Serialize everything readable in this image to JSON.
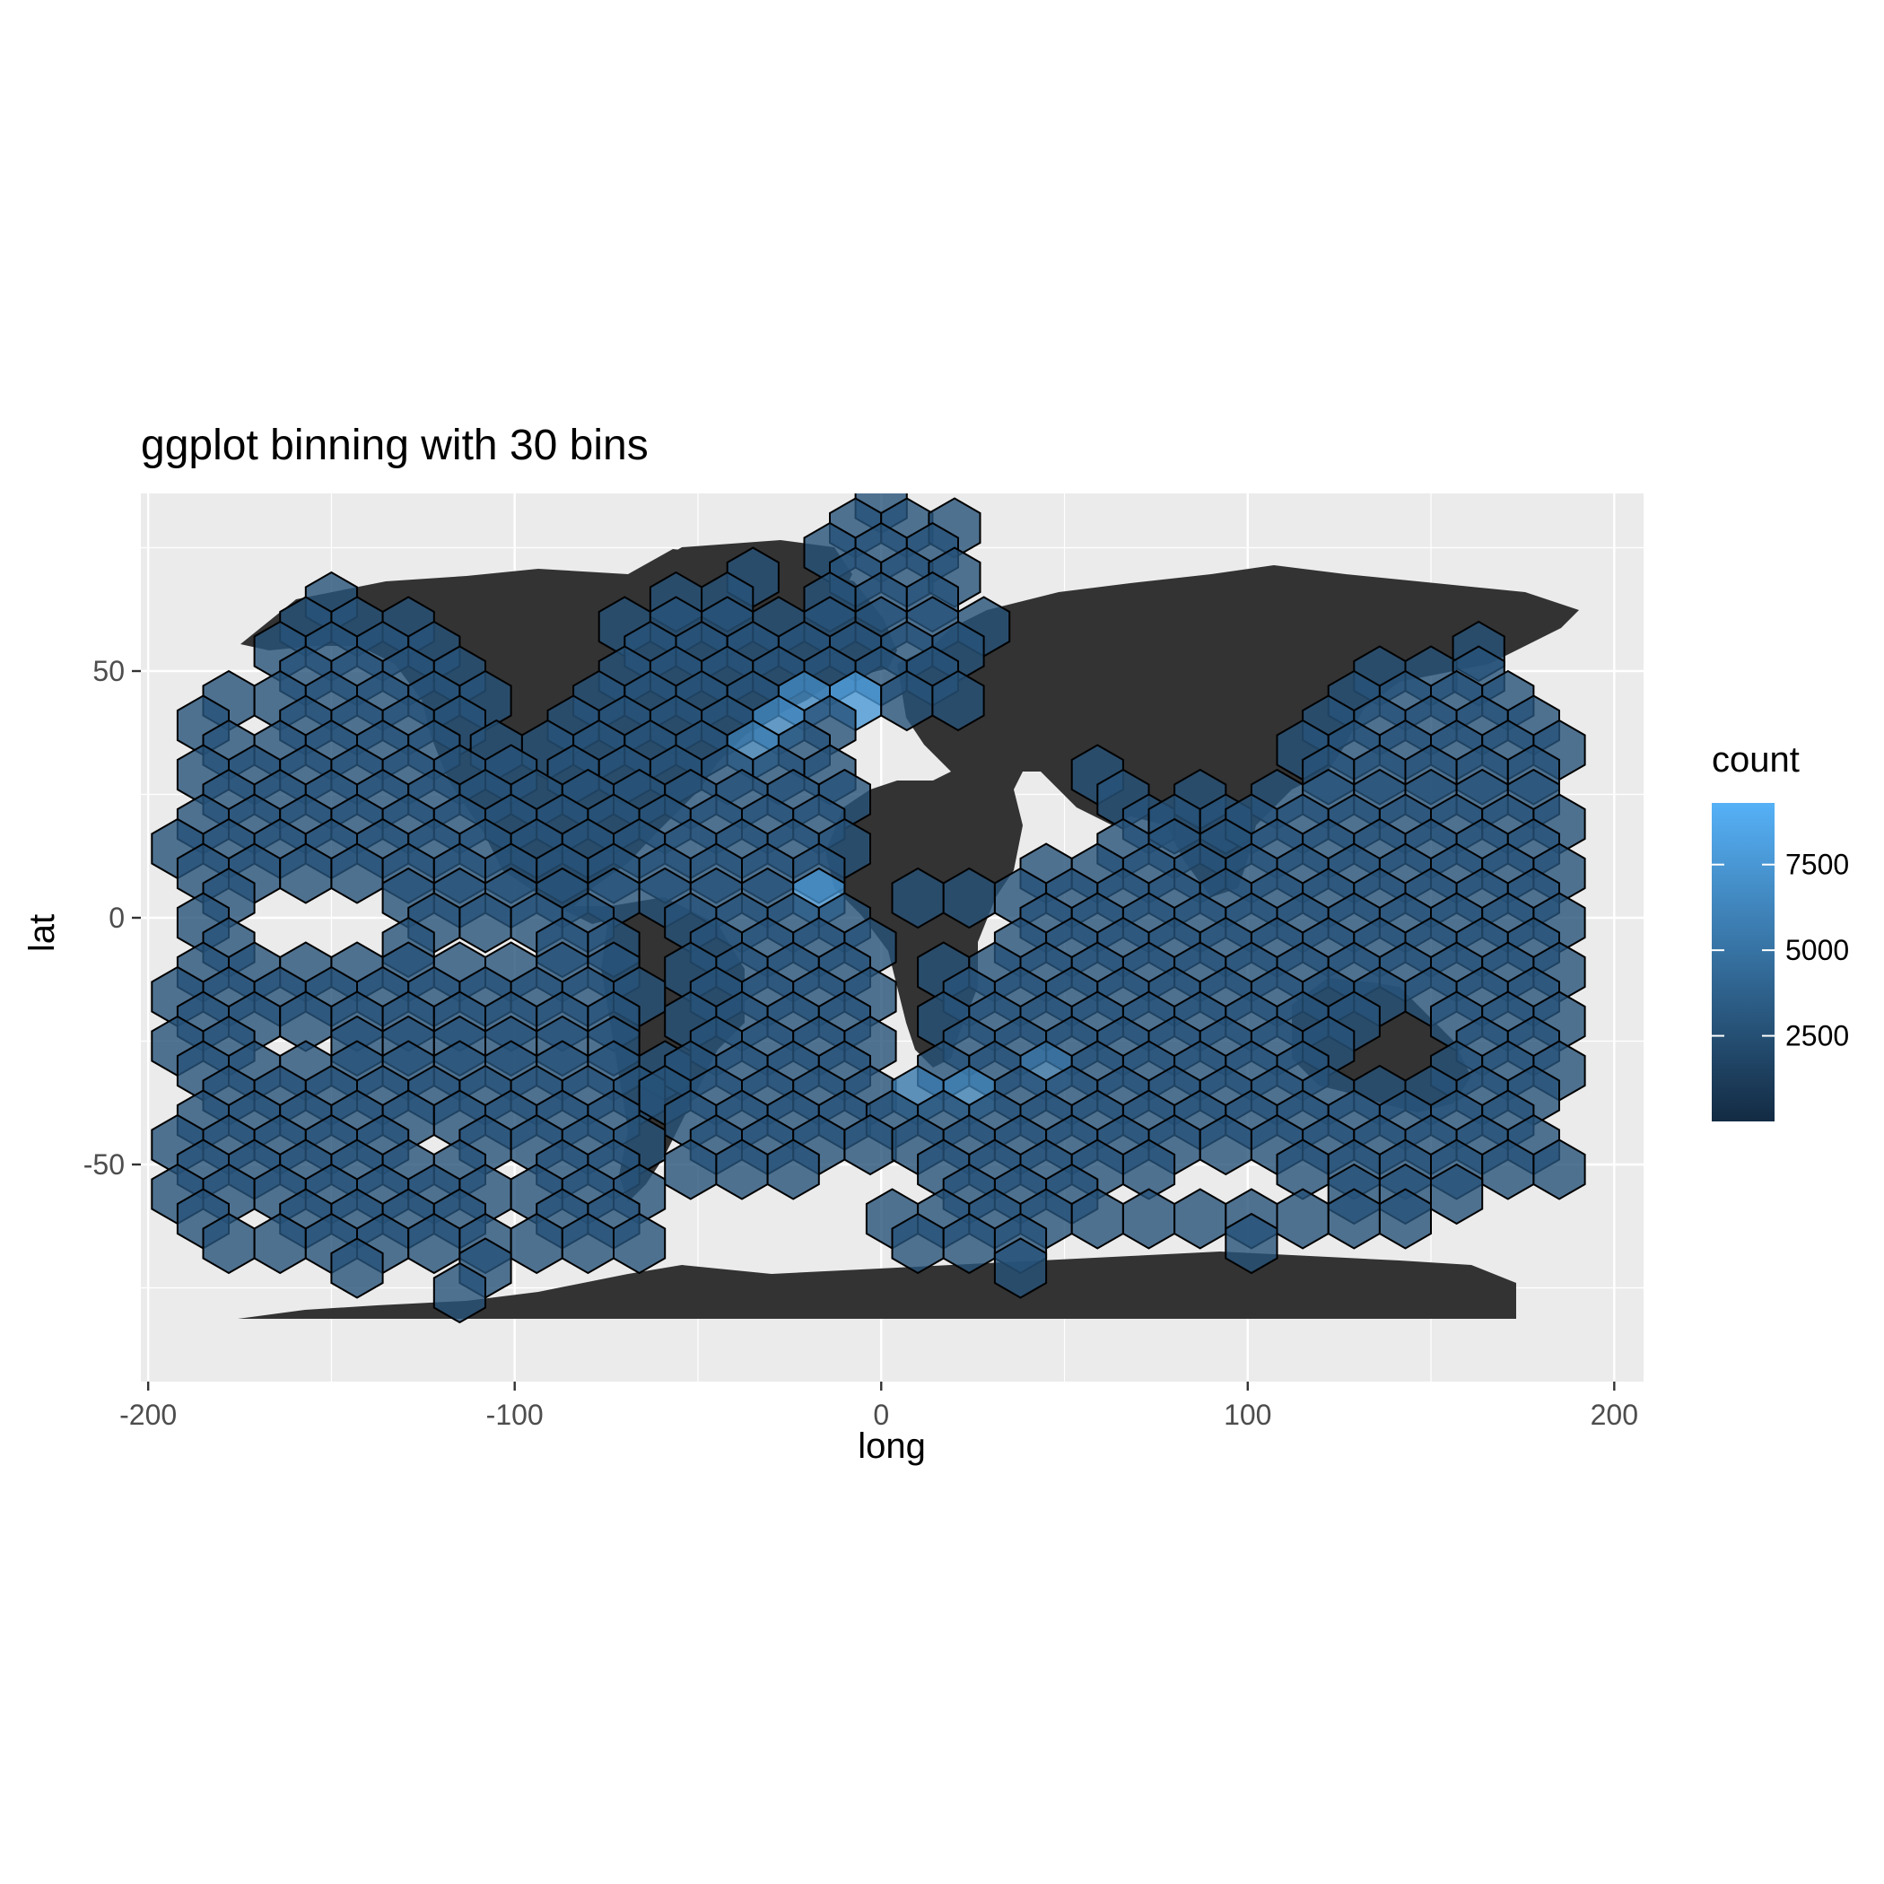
{
  "chart_data": {
    "type": "hexbin",
    "title": "ggplot binning with 30 bins",
    "xlabel": "long",
    "ylabel": "lat",
    "xlim": [
      -202,
      208
    ],
    "ylim": [
      -94,
      86
    ],
    "x_ticks": [
      -200,
      -100,
      0,
      100,
      200
    ],
    "x_tick_labels": [
      "-200",
      "-100",
      "0",
      "100",
      "200"
    ],
    "y_ticks": [
      -50,
      0,
      50
    ],
    "y_tick_labels": [
      "-50",
      "0",
      "50"
    ],
    "grid": true,
    "background_layer": "world land polygons (dark fill #333333)",
    "legend": {
      "title": "count",
      "position": "right",
      "breaks": [
        2500,
        5000,
        7500
      ],
      "break_labels": [
        "2500",
        "5000",
        "7500"
      ],
      "range": [
        0,
        9300
      ],
      "low_color": "#132B43",
      "high_color": "#56B1F7"
    },
    "bins": 30,
    "hex_rows": [
      {
        "lat": 84.0,
        "long": [
          0
        ]
      },
      {
        "lat": 79.0,
        "long": [
          -7,
          7,
          20
        ]
      },
      {
        "lat": 74.0,
        "long": [
          -14,
          0,
          14
        ]
      },
      {
        "lat": 69.0,
        "long": [
          -35,
          -7,
          7,
          20
        ]
      },
      {
        "lat": 64.0,
        "long": [
          -150,
          -56,
          -42,
          -14,
          0,
          14
        ]
      },
      {
        "lat": 59.0,
        "long": [
          -157,
          -143,
          -129,
          -70,
          -56,
          -42,
          -28,
          -14,
          0,
          14,
          28
        ]
      },
      {
        "lat": 54.0,
        "long": [
          -164,
          -150,
          -136,
          -122,
          -63,
          -49,
          -35,
          -21,
          -7,
          7,
          21,
          163
        ]
      },
      {
        "lat": 49.0,
        "long": [
          -157,
          -143,
          -129,
          -115,
          -70,
          -56,
          -42,
          -28,
          -14,
          0,
          14,
          136,
          150,
          163
        ]
      },
      {
        "lat": 44.0,
        "long": [
          -178,
          -164,
          -150,
          -136,
          -122,
          -108,
          -77,
          -63,
          -49,
          -35,
          -21,
          -7,
          7,
          21,
          129,
          143,
          157,
          171
        ]
      },
      {
        "lat": 39.0,
        "long": [
          -185,
          -157,
          -143,
          -129,
          -115,
          -84,
          -70,
          -56,
          -42,
          -28,
          -14,
          122,
          136,
          150,
          164,
          178
        ]
      },
      {
        "lat": 34.0,
        "long": [
          -178,
          -164,
          -150,
          -136,
          -122,
          -105,
          -91,
          -77,
          -63,
          -49,
          -35,
          -21,
          115,
          129,
          143,
          157,
          171,
          185
        ]
      },
      {
        "lat": 29.0,
        "long": [
          -185,
          -171,
          -157,
          -143,
          -129,
          -115,
          -101,
          -84,
          -70,
          -56,
          -42,
          -28,
          -14,
          59,
          122,
          136,
          150,
          164,
          178
        ]
      },
      {
        "lat": 24.0,
        "long": [
          -178,
          -164,
          -150,
          -136,
          -122,
          -108,
          -94,
          -80,
          -66,
          -52,
          -38,
          -24,
          -10,
          66,
          87,
          108,
          122,
          136,
          150,
          164,
          178
        ]
      },
      {
        "lat": 19.0,
        "long": [
          -185,
          -171,
          -157,
          -143,
          -129,
          -115,
          -101,
          -87,
          -73,
          -59,
          -45,
          -31,
          -17,
          73,
          80,
          94,
          101,
          115,
          129,
          143,
          157,
          171,
          185
        ]
      },
      {
        "lat": 14.0,
        "long": [
          -192,
          -178,
          -164,
          -150,
          -136,
          -122,
          -108,
          -94,
          -80,
          -66,
          -52,
          -38,
          -24,
          -10,
          66,
          80,
          94,
          108,
          122,
          136,
          150,
          164,
          178
        ]
      },
      {
        "lat": 9.0,
        "long": [
          -185,
          -171,
          -157,
          -143,
          -129,
          -115,
          -101,
          -87,
          -73,
          -59,
          -45,
          -31,
          -17,
          45,
          59,
          73,
          87,
          101,
          115,
          129,
          143,
          157,
          171,
          185
        ]
      },
      {
        "lat": 4.0,
        "long": [
          -178,
          -129,
          -115,
          -101,
          -87,
          -73,
          -59,
          -45,
          -31,
          -17,
          10,
          24,
          38,
          52,
          66,
          80,
          94,
          108,
          122,
          136,
          150,
          164,
          178
        ]
      },
      {
        "lat": -1.0,
        "long": [
          -185,
          -122,
          -108,
          -94,
          -80,
          -52,
          -38,
          -24,
          -10,
          45,
          59,
          73,
          87,
          101,
          115,
          129,
          143,
          157,
          171,
          185
        ]
      },
      {
        "lat": -6.0,
        "long": [
          -178,
          -129,
          -87,
          -73,
          -45,
          -31,
          -17,
          -3,
          38,
          52,
          66,
          80,
          94,
          108,
          122,
          136,
          150,
          164,
          178
        ]
      },
      {
        "lat": -11.0,
        "long": [
          -185,
          -171,
          -157,
          -143,
          -129,
          -115,
          -101,
          -87,
          -73,
          -52,
          -38,
          -24,
          -10,
          17,
          31,
          45,
          59,
          73,
          87,
          101,
          115,
          129,
          143,
          157,
          171,
          185
        ]
      },
      {
        "lat": -16.0,
        "long": [
          -192,
          -178,
          -164,
          -150,
          -136,
          -122,
          -108,
          -94,
          -80,
          -66,
          -45,
          -31,
          -17,
          -3,
          24,
          38,
          52,
          66,
          80,
          94,
          108,
          122,
          136,
          150,
          164,
          178
        ]
      },
      {
        "lat": -21.0,
        "long": [
          -185,
          -171,
          -157,
          -143,
          -129,
          -115,
          -101,
          -87,
          -73,
          -52,
          -38,
          -24,
          -10,
          17,
          31,
          45,
          59,
          73,
          87,
          101,
          115,
          129,
          157,
          171,
          185
        ]
      },
      {
        "lat": -26.0,
        "long": [
          -192,
          -178,
          -143,
          -129,
          -115,
          -101,
          -87,
          -73,
          -45,
          -31,
          -17,
          -3,
          24,
          38,
          52,
          66,
          80,
          94,
          108,
          122,
          164,
          178
        ]
      },
      {
        "lat": -31.0,
        "long": [
          -185,
          -171,
          -157,
          -143,
          -129,
          -115,
          -101,
          -87,
          -73,
          -59,
          -52,
          -38,
          -24,
          -10,
          17,
          31,
          45,
          59,
          73,
          87,
          101,
          115,
          157,
          171,
          185
        ]
      },
      {
        "lat": -36.0,
        "long": [
          -178,
          -164,
          -150,
          -136,
          -122,
          -108,
          -94,
          -80,
          -66,
          -59,
          -45,
          -31,
          -17,
          -3,
          10,
          24,
          38,
          52,
          66,
          80,
          94,
          108,
          122,
          136,
          150,
          164,
          178
        ]
      },
      {
        "lat": -41.0,
        "long": [
          -185,
          -171,
          -157,
          -143,
          -129,
          -115,
          -101,
          -87,
          -73,
          -52,
          -38,
          -24,
          -10,
          3,
          17,
          31,
          45,
          59,
          73,
          87,
          101,
          115,
          129,
          143,
          157,
          171
        ]
      },
      {
        "lat": -46.0,
        "long": [
          -192,
          -178,
          -164,
          -150,
          -136,
          -108,
          -94,
          -80,
          -66,
          -45,
          -31,
          -17,
          -3,
          10,
          24,
          38,
          52,
          66,
          80,
          94,
          108,
          122,
          136,
          150,
          164,
          178
        ]
      },
      {
        "lat": -51.0,
        "long": [
          -185,
          -171,
          -157,
          -143,
          -129,
          -115,
          -87,
          -73,
          -52,
          -38,
          -24,
          17,
          31,
          45,
          59,
          73,
          115,
          129,
          143,
          157,
          171,
          185
        ]
      },
      {
        "lat": -56.0,
        "long": [
          -192,
          -178,
          -164,
          -150,
          -136,
          -122,
          -108,
          -94,
          -80,
          -66,
          24,
          38,
          52,
          129,
          143,
          157
        ]
      },
      {
        "lat": -61.0,
        "long": [
          -185,
          -157,
          -143,
          -129,
          -115,
          -87,
          -73,
          3,
          17,
          31,
          45,
          59,
          73,
          87,
          101,
          115,
          129,
          143
        ]
      },
      {
        "lat": -66.0,
        "long": [
          -178,
          -164,
          -150,
          -136,
          -122,
          -108,
          -94,
          -80,
          -66,
          10,
          24,
          38,
          101
        ]
      },
      {
        "lat": -71.0,
        "long": [
          -143,
          -108,
          38
        ]
      },
      {
        "lat": -76.0,
        "long": [
          -115
        ]
      }
    ],
    "hot_cells": [
      {
        "long": -10,
        "lat": 49,
        "count": 9300
      },
      {
        "long": -14,
        "lat": 44,
        "count": 8600
      },
      {
        "long": -7,
        "lat": 44,
        "count": 7600
      },
      {
        "long": -21,
        "lat": 44,
        "count": 6400
      },
      {
        "long": -17,
        "lat": 4,
        "count": 7000
      },
      {
        "long": -24,
        "lat": 9,
        "count": 6400
      },
      {
        "long": -17,
        "lat": -1,
        "count": 6000
      },
      {
        "long": -28,
        "lat": 39,
        "count": 6200
      },
      {
        "long": -35,
        "lat": 34,
        "count": 5600
      },
      {
        "long": 24,
        "lat": -36,
        "count": 5800
      },
      {
        "long": 10,
        "lat": -36,
        "count": 5400
      },
      {
        "long": 31,
        "lat": -36,
        "count": 5200
      },
      {
        "long": 45,
        "lat": -31,
        "count": 4800
      }
    ],
    "default_count": 2800
  }
}
